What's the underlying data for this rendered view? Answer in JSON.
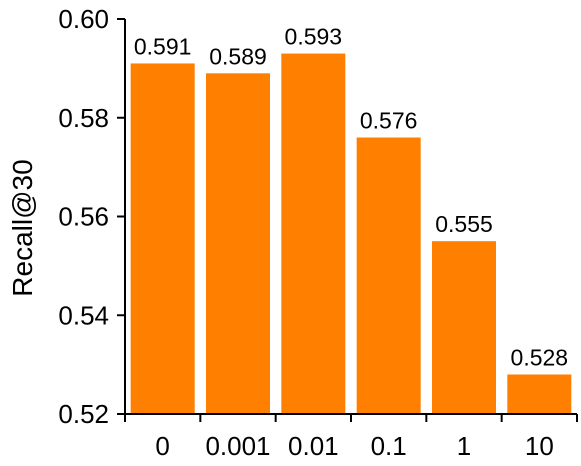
{
  "chart_data": {
    "type": "bar",
    "title": "",
    "xlabel": "",
    "ylabel": "Recall@30",
    "categories": [
      "0",
      "0.001",
      "0.01",
      "0.1",
      "1",
      "10"
    ],
    "values": [
      0.591,
      0.589,
      0.593,
      0.576,
      0.555,
      0.528
    ],
    "value_labels": [
      "0.591",
      "0.589",
      "0.593",
      "0.576",
      "0.555",
      "0.528"
    ],
    "ylim": [
      0.52,
      0.6
    ],
    "y_ticks": [
      "0.52",
      "0.54",
      "0.56",
      "0.58",
      "0.60"
    ],
    "grid": false,
    "legend": "none",
    "bar_color": "#ff7f00",
    "axis_color": "#000000"
  }
}
